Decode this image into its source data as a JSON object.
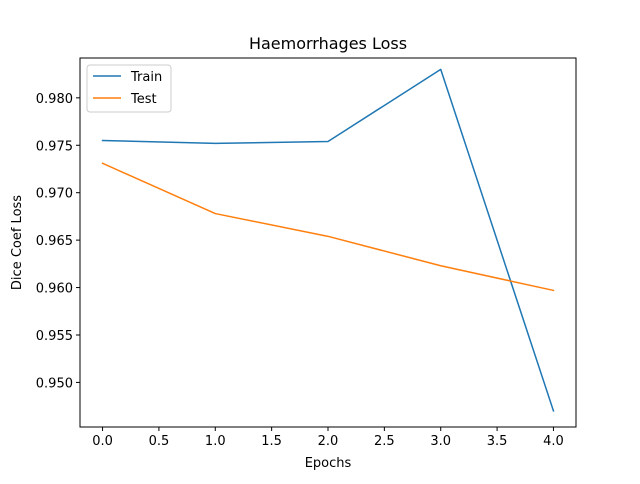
{
  "chart_data": {
    "type": "line",
    "title": "Haemorrhages Loss",
    "xlabel": "Epochs",
    "ylabel": "Dice Coef Loss",
    "x": [
      0.0,
      1.0,
      2.0,
      3.0,
      4.0
    ],
    "series": [
      {
        "name": "Train",
        "color": "#1f77b4",
        "values": [
          0.9755,
          0.9752,
          0.9754,
          0.983,
          0.947
        ]
      },
      {
        "name": "Test",
        "color": "#ff7f0e",
        "values": [
          0.9731,
          0.9678,
          0.9654,
          0.9623,
          0.9597
        ]
      }
    ],
    "xlim": [
      -0.2,
      4.2
    ],
    "ylim": [
      0.9453,
      0.9842
    ],
    "xticks": [
      0.0,
      0.5,
      1.0,
      1.5,
      2.0,
      2.5,
      3.0,
      3.5,
      4.0
    ],
    "xtick_labels": [
      "0.0",
      "0.5",
      "1.0",
      "1.5",
      "2.0",
      "2.5",
      "3.0",
      "3.5",
      "4.0"
    ],
    "yticks": [
      0.95,
      0.955,
      0.96,
      0.965,
      0.97,
      0.975,
      0.98
    ],
    "ytick_labels": [
      "0.950",
      "0.955",
      "0.960",
      "0.965",
      "0.970",
      "0.975",
      "0.980"
    ],
    "grid": false,
    "legend_position": "upper-left"
  }
}
